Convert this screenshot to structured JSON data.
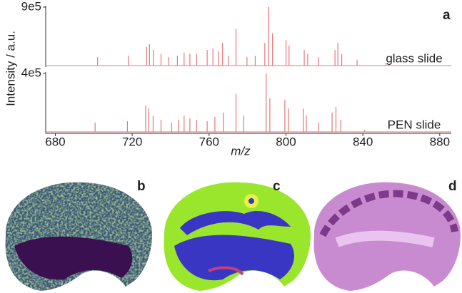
{
  "figure": {
    "y_label": "Intensity / a.u.",
    "x_label": "m/z",
    "images": [
      {
        "label": "b"
      },
      {
        "label": "c"
      },
      {
        "label": "d"
      }
    ]
  },
  "chart_data": [
    {
      "type": "spectrum",
      "annotation": "glass slide",
      "panel_label": "a",
      "color": "#e8767a",
      "xlim": [
        675,
        886
      ],
      "ylim": [
        0,
        900000
      ],
      "yticks": [
        {
          "value": 900000,
          "label": "9e5"
        }
      ],
      "x": [
        702,
        718,
        727.5,
        729,
        731,
        735,
        739,
        743.5,
        747,
        750,
        753.5,
        759,
        762,
        765,
        767,
        770,
        774,
        779.7,
        784,
        789,
        791,
        793,
        800,
        801.6,
        809.5,
        811.3,
        817,
        825.5,
        827,
        829,
        837,
        852
      ],
      "values": [
        130000,
        150000,
        290000,
        330000,
        240000,
        180000,
        130000,
        150000,
        200000,
        180000,
        180000,
        240000,
        260000,
        220000,
        350000,
        150000,
        570000,
        130000,
        150000,
        350000,
        900000,
        500000,
        390000,
        310000,
        240000,
        180000,
        130000,
        240000,
        350000,
        180000,
        90000,
        40000
      ]
    },
    {
      "type": "spectrum",
      "annotation": "PEN slide",
      "color": "#e8767a",
      "xlim": [
        675,
        886
      ],
      "ylim": [
        0,
        400000
      ],
      "yticks": [
        {
          "value": 400000,
          "label": "4e5"
        }
      ],
      "xticks": [
        680,
        720,
        760,
        800,
        840,
        880
      ],
      "x": [
        700.7,
        717.5,
        727,
        728.6,
        730.9,
        735,
        740.5,
        744,
        747,
        750,
        753.5,
        759,
        763,
        767.4,
        774,
        778,
        789.7,
        791.6,
        799.4,
        801.3,
        809,
        810.6,
        817,
        824,
        826,
        828.5,
        841
      ],
      "values": [
        63000,
        73000,
        180000,
        160000,
        110000,
        83000,
        63000,
        83000,
        110000,
        93000,
        83000,
        73000,
        103000,
        132000,
        260000,
        112000,
        400000,
        230000,
        220000,
        160000,
        160000,
        112000,
        63000,
        132000,
        170000,
        83000,
        15000
      ]
    }
  ]
}
